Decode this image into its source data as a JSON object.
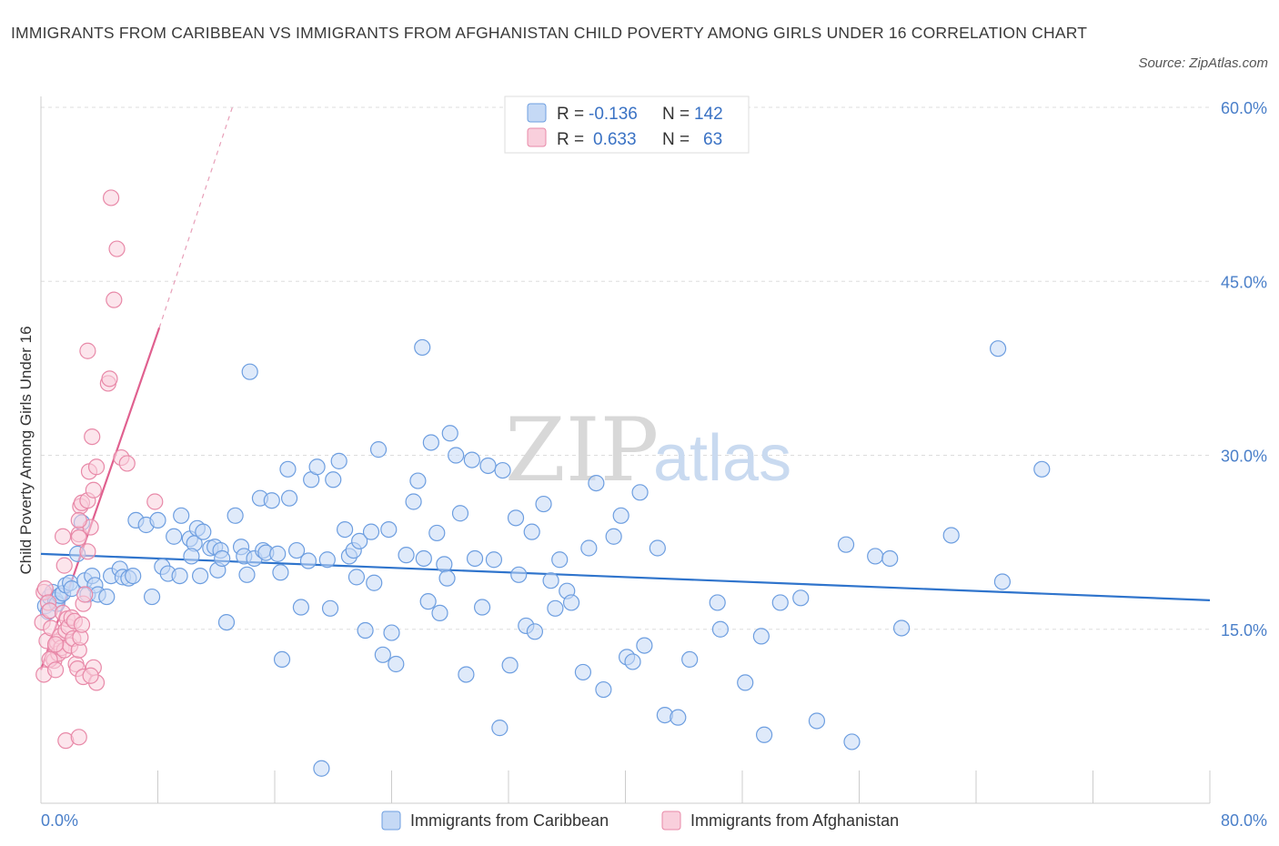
{
  "title": "IMMIGRANTS FROM CARIBBEAN VS IMMIGRANTS FROM AFGHANISTAN CHILD POVERTY AMONG GIRLS UNDER 16 CORRELATION CHART",
  "source": "Source: ZipAtlas.com",
  "watermark": {
    "zip": "ZIP",
    "atlas": "atlas"
  },
  "legend": {
    "rows": [
      {
        "r_label": "R = ",
        "r_value": "-0.136",
        "n_label": "N = ",
        "n_value": "142"
      },
      {
        "r_label": "R = ",
        "r_value": "0.633",
        "n_label": "N = ",
        "n_value": "63"
      }
    ]
  },
  "colors": {
    "caribbean_fill": "#c5d9f5",
    "caribbean_stroke": "#6d9ee0",
    "caribbean_line": "#2f74cc",
    "afghanistan_fill": "#f9cfdc",
    "afghanistan_stroke": "#e889a8",
    "afghanistan_line": "#e0608f",
    "grid": "#dddddd",
    "tick_text": "#4a7fc9"
  },
  "chart_data": {
    "type": "scatter",
    "title": "IMMIGRANTS FROM CARIBBEAN VS IMMIGRANTS FROM AFGHANISTAN CHILD POVERTY AMONG GIRLS UNDER 16 CORRELATION CHART",
    "xlabel": "",
    "ylabel": "Child Poverty Among Girls Under 16",
    "xlim": [
      0,
      80
    ],
    "ylim": [
      0,
      60
    ],
    "x_tick_labels": [
      "0.0%",
      "80.0%"
    ],
    "y_ticks": [
      15,
      30,
      45,
      60
    ],
    "y_tick_labels": [
      "15.0%",
      "30.0%",
      "45.0%",
      "60.0%"
    ],
    "grid": true,
    "legend_position": "top-center",
    "series": [
      {
        "name": "Immigrants from Caribbean",
        "R": -0.136,
        "N": 142,
        "trend": {
          "x0": 0,
          "y0": 21.5,
          "x1": 80,
          "y1": 17.5
        },
        "points": [
          [
            0.3,
            17.0
          ],
          [
            0.5,
            16.5
          ],
          [
            0.6,
            17.8
          ],
          [
            0.8,
            18.2
          ],
          [
            1.0,
            17.5
          ],
          [
            1.1,
            17.2
          ],
          [
            1.3,
            17.9
          ],
          [
            1.5,
            18.1
          ],
          [
            1.7,
            18.8
          ],
          [
            2.0,
            19.0
          ],
          [
            2.1,
            18.5
          ],
          [
            2.5,
            21.5
          ],
          [
            2.8,
            24.2
          ],
          [
            3.0,
            19.2
          ],
          [
            3.2,
            18.0
          ],
          [
            3.5,
            19.6
          ],
          [
            3.7,
            18.8
          ],
          [
            3.9,
            18.0
          ],
          [
            4.5,
            17.8
          ],
          [
            4.8,
            19.6
          ],
          [
            5.4,
            20.2
          ],
          [
            5.6,
            19.5
          ],
          [
            6.0,
            19.4
          ],
          [
            6.3,
            19.6
          ],
          [
            6.5,
            24.4
          ],
          [
            7.2,
            24.0
          ],
          [
            7.6,
            17.8
          ],
          [
            8.0,
            24.4
          ],
          [
            8.3,
            20.4
          ],
          [
            8.7,
            19.8
          ],
          [
            9.5,
            19.6
          ],
          [
            9.1,
            23.0
          ],
          [
            9.6,
            24.8
          ],
          [
            10.2,
            22.8
          ],
          [
            10.5,
            22.4
          ],
          [
            10.3,
            21.3
          ],
          [
            10.7,
            23.7
          ],
          [
            11.1,
            23.4
          ],
          [
            11.6,
            22.0
          ],
          [
            11.9,
            22.1
          ],
          [
            12.3,
            21.8
          ],
          [
            12.1,
            20.1
          ],
          [
            12.4,
            21.1
          ],
          [
            12.7,
            15.6
          ],
          [
            13.3,
            24.8
          ],
          [
            13.7,
            22.1
          ],
          [
            13.9,
            21.3
          ],
          [
            14.1,
            19.7
          ],
          [
            14.3,
            37.2
          ],
          [
            14.6,
            21.1
          ],
          [
            15.0,
            26.3
          ],
          [
            15.2,
            21.8
          ],
          [
            15.4,
            21.6
          ],
          [
            15.8,
            26.1
          ],
          [
            16.2,
            21.5
          ],
          [
            16.4,
            19.9
          ],
          [
            16.9,
            28.8
          ],
          [
            17.0,
            26.3
          ],
          [
            17.5,
            21.8
          ],
          [
            17.8,
            16.9
          ],
          [
            18.3,
            20.9
          ],
          [
            18.5,
            27.9
          ],
          [
            18.9,
            29.0
          ],
          [
            19.2,
            3.0
          ],
          [
            19.6,
            21.0
          ],
          [
            19.8,
            16.8
          ],
          [
            20.0,
            27.9
          ],
          [
            20.4,
            29.5
          ],
          [
            20.8,
            23.6
          ],
          [
            21.1,
            21.3
          ],
          [
            21.4,
            21.8
          ],
          [
            21.6,
            19.5
          ],
          [
            21.8,
            22.6
          ],
          [
            22.2,
            14.9
          ],
          [
            22.6,
            23.4
          ],
          [
            22.8,
            19.0
          ],
          [
            23.1,
            30.5
          ],
          [
            23.4,
            12.8
          ],
          [
            23.8,
            23.6
          ],
          [
            24.0,
            14.7
          ],
          [
            24.3,
            12.0
          ],
          [
            25.0,
            21.4
          ],
          [
            25.5,
            26.0
          ],
          [
            25.8,
            27.8
          ],
          [
            26.2,
            21.1
          ],
          [
            26.5,
            17.4
          ],
          [
            26.7,
            31.1
          ],
          [
            27.1,
            23.3
          ],
          [
            27.3,
            16.4
          ],
          [
            27.6,
            20.6
          ],
          [
            27.8,
            19.4
          ],
          [
            28.0,
            31.9
          ],
          [
            28.4,
            30.0
          ],
          [
            28.7,
            25.0
          ],
          [
            29.1,
            11.1
          ],
          [
            29.5,
            29.6
          ],
          [
            29.7,
            21.1
          ],
          [
            30.2,
            16.9
          ],
          [
            30.6,
            29.1
          ],
          [
            31.0,
            21.0
          ],
          [
            31.4,
            6.5
          ],
          [
            31.6,
            28.7
          ],
          [
            32.1,
            11.9
          ],
          [
            32.5,
            24.6
          ],
          [
            32.7,
            19.7
          ],
          [
            33.2,
            15.3
          ],
          [
            33.6,
            23.4
          ],
          [
            33.8,
            14.8
          ],
          [
            34.4,
            25.8
          ],
          [
            34.9,
            19.2
          ],
          [
            35.2,
            16.8
          ],
          [
            35.5,
            21.0
          ],
          [
            36.0,
            18.3
          ],
          [
            36.3,
            17.3
          ],
          [
            37.5,
            22.0
          ],
          [
            37.1,
            11.3
          ],
          [
            38.0,
            27.6
          ],
          [
            38.5,
            9.8
          ],
          [
            39.2,
            23.0
          ],
          [
            39.7,
            24.8
          ],
          [
            40.1,
            12.6
          ],
          [
            40.5,
            12.2
          ],
          [
            41.0,
            26.8
          ],
          [
            41.3,
            13.6
          ],
          [
            42.2,
            22.0
          ],
          [
            42.7,
            7.6
          ],
          [
            43.6,
            7.4
          ],
          [
            44.4,
            12.4
          ],
          [
            46.3,
            17.3
          ],
          [
            46.5,
            15.0
          ],
          [
            48.2,
            10.4
          ],
          [
            49.3,
            14.4
          ],
          [
            49.5,
            5.9
          ],
          [
            50.6,
            17.3
          ],
          [
            52.0,
            17.7
          ],
          [
            53.1,
            7.1
          ],
          [
            55.1,
            22.3
          ],
          [
            55.5,
            5.3
          ],
          [
            57.1,
            21.3
          ],
          [
            58.1,
            21.1
          ],
          [
            58.9,
            15.1
          ],
          [
            62.3,
            23.1
          ],
          [
            65.5,
            39.2
          ],
          [
            65.8,
            19.1
          ],
          [
            68.5,
            28.8
          ],
          [
            26.1,
            39.3
          ],
          [
            16.5,
            12.4
          ],
          [
            10.9,
            19.6
          ]
        ]
      },
      {
        "name": "Immigrants from Afghanistan",
        "R": 0.633,
        "N": 63,
        "trend": {
          "x0": 0,
          "y0": 11.5,
          "x1": 8.1,
          "y1": 41.0
        },
        "trend_extrapolated": {
          "x0": 8.1,
          "y0": 41.0,
          "x1": 13.1,
          "y1": 60.0
        },
        "points": [
          [
            0.1,
            15.6
          ],
          [
            0.2,
            18.2
          ],
          [
            0.3,
            18.5
          ],
          [
            0.4,
            14.0
          ],
          [
            0.5,
            17.3
          ],
          [
            0.6,
            16.6
          ],
          [
            0.7,
            15.1
          ],
          [
            0.8,
            12.6
          ],
          [
            0.9,
            12.3
          ],
          [
            1.0,
            13.5
          ],
          [
            1.1,
            13.9
          ],
          [
            1.2,
            12.9
          ],
          [
            1.3,
            14.4
          ],
          [
            1.4,
            13.4
          ],
          [
            1.5,
            16.4
          ],
          [
            1.6,
            13.2
          ],
          [
            1.7,
            14.9
          ],
          [
            1.8,
            15.9
          ],
          [
            1.9,
            15.2
          ],
          [
            2.0,
            13.6
          ],
          [
            2.1,
            16.0
          ],
          [
            2.2,
            14.2
          ],
          [
            2.3,
            15.7
          ],
          [
            2.4,
            12.0
          ],
          [
            2.5,
            11.6
          ],
          [
            2.6,
            13.2
          ],
          [
            2.7,
            14.3
          ],
          [
            2.8,
            15.4
          ],
          [
            2.9,
            17.2
          ],
          [
            3.0,
            18.0
          ],
          [
            0.2,
            11.1
          ],
          [
            0.6,
            12.4
          ],
          [
            1.0,
            11.5
          ],
          [
            1.7,
            5.4
          ],
          [
            2.6,
            5.7
          ],
          [
            2.9,
            10.9
          ],
          [
            3.6,
            11.7
          ],
          [
            3.8,
            10.4
          ],
          [
            3.4,
            11.0
          ],
          [
            1.6,
            20.5
          ],
          [
            2.6,
            23.2
          ],
          [
            2.6,
            22.9
          ],
          [
            3.2,
            21.7
          ],
          [
            3.4,
            23.8
          ],
          [
            1.5,
            23.0
          ],
          [
            2.7,
            25.6
          ],
          [
            2.8,
            25.9
          ],
          [
            3.2,
            26.1
          ],
          [
            3.3,
            28.6
          ],
          [
            3.6,
            27.0
          ],
          [
            3.8,
            29.0
          ],
          [
            3.5,
            31.6
          ],
          [
            3.2,
            39.0
          ],
          [
            4.6,
            36.2
          ],
          [
            4.7,
            36.6
          ],
          [
            5.0,
            43.4
          ],
          [
            5.2,
            47.8
          ],
          [
            4.8,
            52.2
          ],
          [
            5.5,
            29.8
          ],
          [
            5.9,
            29.3
          ],
          [
            7.8,
            26.0
          ],
          [
            2.6,
            24.4
          ],
          [
            1.0,
            13.7
          ]
        ]
      }
    ]
  },
  "bottom_legend": {
    "items": [
      {
        "label": "Immigrants from Caribbean"
      },
      {
        "label": "Immigrants from Afghanistan"
      }
    ]
  }
}
